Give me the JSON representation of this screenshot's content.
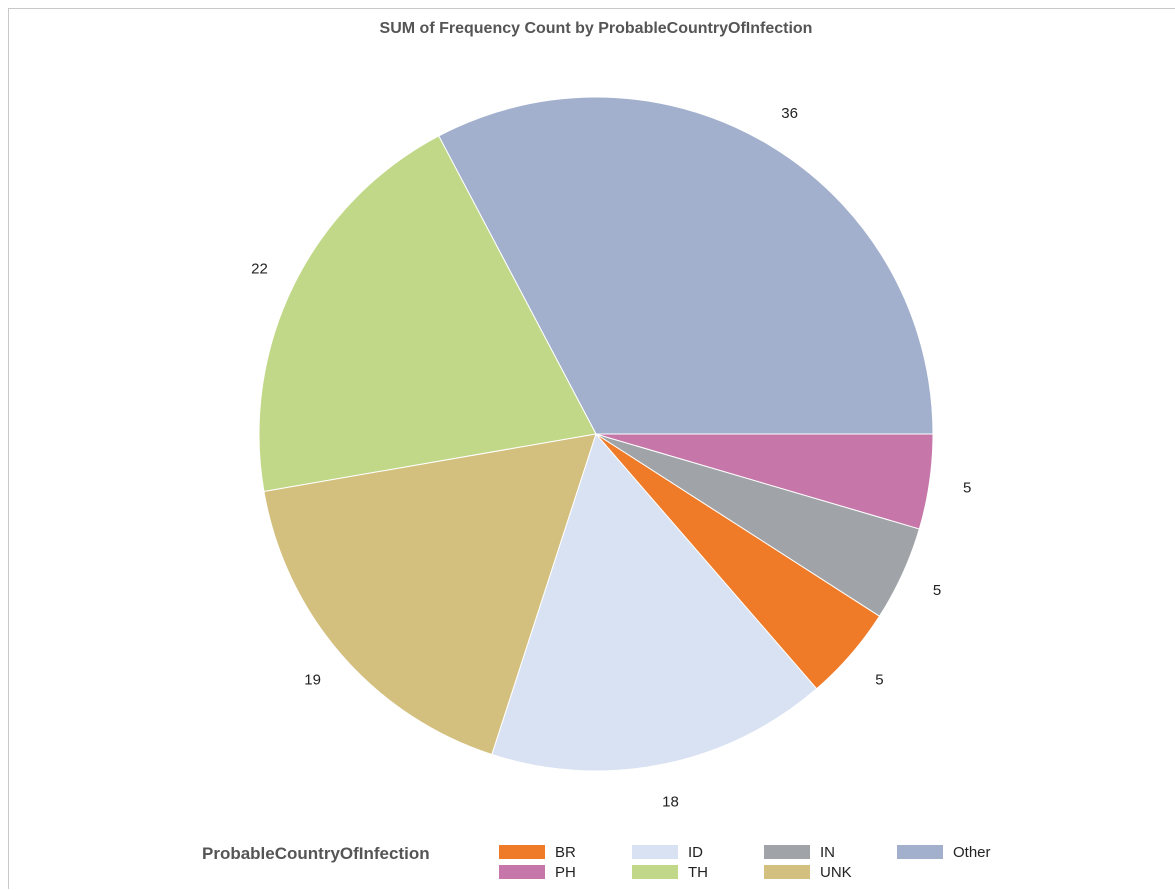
{
  "chart_data": {
    "type": "pie",
    "title": "SUM of Frequency Count by ProbableCountryOfInfection",
    "legend_title": "ProbableCountryOfInfection",
    "legend_position": "bottom",
    "slices": [
      {
        "label": "Other",
        "value": 36,
        "color": "#a2b0cd"
      },
      {
        "label": "TH",
        "value": 22,
        "color": "#c1d888"
      },
      {
        "label": "UNK",
        "value": 19,
        "color": "#d3bf7e"
      },
      {
        "label": "ID",
        "value": 18,
        "color": "#d8e2f2"
      },
      {
        "label": "BR",
        "value": 5,
        "color": "#ef7a28"
      },
      {
        "label": "IN",
        "value": 5,
        "color": "#a0a4a8"
      },
      {
        "label": "PH",
        "value": 5,
        "color": "#c676a8"
      }
    ],
    "legend_order": [
      "BR",
      "PH",
      "ID",
      "TH",
      "IN",
      "UNK",
      "Other"
    ]
  }
}
